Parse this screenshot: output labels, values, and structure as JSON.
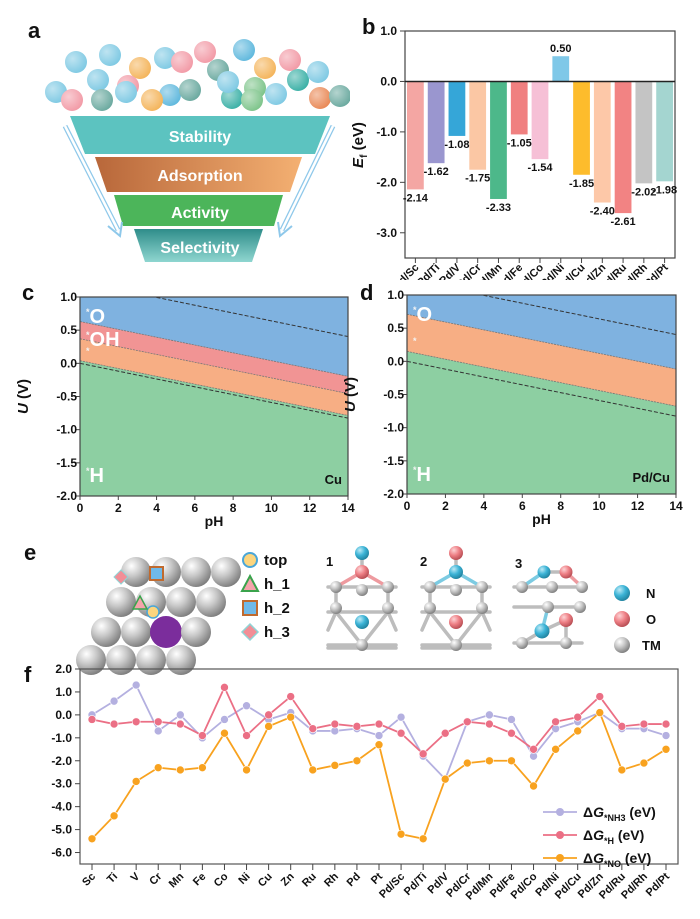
{
  "panels": {
    "a": {
      "letter": "a",
      "funnel_stages": [
        {
          "label": "Stability",
          "color": "#5cc3c0"
        },
        {
          "label": "Adsorption",
          "color": "#e0925a"
        },
        {
          "label": "Activity",
          "color": "#4cb55a"
        },
        {
          "label": "Selectivity",
          "color": "#3a9e9a"
        }
      ],
      "ball_colors": [
        "#7ec9e3",
        "#f29aa6",
        "#6aa99f",
        "#f4b45a",
        "#3ab0a6",
        "#7dc48a",
        "#e98855",
        "#5fb8dd"
      ]
    },
    "b": {
      "letter": "b"
    },
    "c": {
      "letter": "c",
      "material": "Cu",
      "region_labels": [
        "*O",
        "*OH",
        "*",
        "*H"
      ]
    },
    "d": {
      "letter": "d",
      "material": "Pd/Cu",
      "region_labels": [
        "*O",
        "*",
        "*H"
      ]
    },
    "e": {
      "letter": "e",
      "site_legend": [
        {
          "label": "top",
          "shape": "circle"
        },
        {
          "label": "h_1",
          "shape": "triangle"
        },
        {
          "label": "h_2",
          "shape": "square"
        },
        {
          "label": "h_3",
          "shape": "diamond"
        }
      ],
      "config_numbers": [
        "1",
        "2",
        "3"
      ],
      "atom_legend": [
        {
          "label": "N",
          "color": "#3bb3d6"
        },
        {
          "label": "O",
          "color": "#ee7f85"
        },
        {
          "label": "TM",
          "color": "#b9b9b9"
        }
      ]
    },
    "f": {
      "letter": "f"
    }
  },
  "chart_data": [
    {
      "id": "b",
      "type": "bar",
      "title": "",
      "xlabel": "",
      "ylabel": "E_f (eV)",
      "ylim": [
        -3.5,
        1.0
      ],
      "yticks": [
        "1.0",
        "0.0",
        "-1.0",
        "-2.0",
        "-3.0"
      ],
      "ytick_values": [
        1.0,
        0.0,
        -1.0,
        -2.0,
        -3.0
      ],
      "categories": [
        "Pd/Sc",
        "Pd/Ti",
        "Pd/V",
        "Pd/Cr",
        "Pd/Mn",
        "Pd/Fe",
        "Pd/Co",
        "Pd/Ni",
        "Pd/Cu",
        "Pd/Zn",
        "Pd/Ru",
        "Pd/Rh",
        "Pd/Pt"
      ],
      "values": [
        -2.14,
        -1.62,
        -1.08,
        -1.75,
        -2.33,
        -1.05,
        -1.54,
        0.5,
        -1.85,
        -2.4,
        -2.61,
        -2.02,
        -1.98
      ],
      "labels": [
        "-2.14",
        "-1.62",
        "-1.08",
        "-1.75",
        "-2.33",
        "-1.05",
        "-1.54",
        "0.50",
        "-1.85",
        "-2.40",
        "-2.61",
        "-2.02",
        "-1.98"
      ],
      "colors": [
        "#f4a6a3",
        "#9a96cf",
        "#35a6d8",
        "#fbc7a4",
        "#4db88a",
        "#f08080",
        "#f6c0d6",
        "#7fc8e8",
        "#fdbc2c",
        "#fdc8a8",
        "#f28383",
        "#c4c4c4",
        "#a4d5d0"
      ]
    },
    {
      "id": "c",
      "type": "area",
      "title": "Cu",
      "xlabel": "pH",
      "ylabel": "U (V)",
      "xlim": [
        0,
        14
      ],
      "ylim": [
        -2.0,
        1.0
      ],
      "xticks": [
        "0",
        "2",
        "4",
        "6",
        "8",
        "10",
        "12",
        "14"
      ],
      "yticks": [
        "1.0",
        "0.5",
        "0.0",
        "-0.5",
        "-1.0",
        "-1.5",
        "-2.0"
      ],
      "boundaries_at_pH0": [
        0.63,
        0.37,
        0.04
      ],
      "slope_per_pH": -0.059,
      "dashed_lines_at_pH0": [
        1.23,
        0.0
      ],
      "regions": [
        {
          "label": "*O",
          "color": "#7fb2e0"
        },
        {
          "label": "*OH",
          "color": "#f19494"
        },
        {
          "label": "*",
          "color": "#f7ae84"
        },
        {
          "label": "*H",
          "color": "#8dcfa2"
        }
      ]
    },
    {
      "id": "d",
      "type": "area",
      "title": "Pd/Cu",
      "xlabel": "pH",
      "ylabel": "U (V)",
      "xlim": [
        0,
        14
      ],
      "ylim": [
        -2.0,
        1.0
      ],
      "xticks": [
        "0",
        "2",
        "4",
        "6",
        "8",
        "10",
        "12",
        "14"
      ],
      "yticks": [
        "1.0",
        "0.5",
        "0.0",
        "-0.5",
        "-1.0",
        "-1.5",
        "-2.0"
      ],
      "boundaries_at_pH0": [
        0.71,
        0.15
      ],
      "slope_per_pH": -0.059,
      "dashed_lines_at_pH0": [
        1.23,
        0.0
      ],
      "regions": [
        {
          "label": "*O",
          "color": "#7fb2e0"
        },
        {
          "label": "*",
          "color": "#f7ae84"
        },
        {
          "label": "*H",
          "color": "#8dcfa2"
        }
      ]
    },
    {
      "id": "f",
      "type": "line",
      "title": "",
      "xlabel": "",
      "ylabel": "",
      "ylim": [
        -6.5,
        2.0
      ],
      "yticks": [
        "2.0",
        "1.0",
        "0.0",
        "-1.0",
        "-2.0",
        "-3.0",
        "-4.0",
        "-5.0",
        "-6.0"
      ],
      "ytick_values": [
        2,
        1,
        0,
        -1,
        -2,
        -3,
        -4,
        -5,
        -6
      ],
      "legend_position": "bottom-right",
      "categories": [
        "Sc",
        "Ti",
        "V",
        "Cr",
        "Mn",
        "Fe",
        "Co",
        "Ni",
        "Cu",
        "Zn",
        "Ru",
        "Rh",
        "Pd",
        "Pt",
        "Pd/Sc",
        "Pd/Ti",
        "Pd/V",
        "Pd/Cr",
        "Pd/Mn",
        "Pd/Fe",
        "Pd/Co",
        "Pd/Ni",
        "Pd/Cu",
        "Pd/Zn",
        "Pd/Ru",
        "Pd/Rh",
        "Pd/Pt"
      ],
      "series": [
        {
          "name": "ΔG*NH3 (eV)",
          "legend_main": "ΔG",
          "legend_sub": "*NH3",
          "legend_unit": "(eV)",
          "color": "#b4b0e0",
          "values": [
            0.0,
            0.6,
            1.3,
            -0.7,
            0.0,
            -1.0,
            -0.2,
            0.4,
            -0.2,
            0.1,
            -0.7,
            -0.7,
            -0.6,
            -0.9,
            -0.1,
            -1.8,
            -2.8,
            -0.3,
            0.0,
            -0.2,
            -1.8,
            -0.6,
            -0.3,
            0.1,
            -0.6,
            -0.6,
            -0.9
          ]
        },
        {
          "name": "ΔG*H (eV)",
          "legend_main": "ΔG",
          "legend_sub": "*H",
          "legend_unit": "(eV)",
          "color": "#eb6f85",
          "values": [
            -0.2,
            -0.4,
            -0.3,
            -0.3,
            -0.4,
            -0.9,
            1.2,
            -0.9,
            0.0,
            0.8,
            -0.6,
            -0.4,
            -0.5,
            -0.4,
            -0.8,
            -1.7,
            -0.8,
            -0.3,
            -0.4,
            -0.8,
            -1.5,
            -0.3,
            -0.1,
            0.8,
            -0.5,
            -0.4,
            -0.4
          ]
        },
        {
          "name": "ΔG*NO (eV)",
          "legend_main": "ΔG",
          "legend_sub": "*NO",
          "legend_unit": "(eV)",
          "color": "#f8a21f",
          "values": [
            -5.4,
            -4.4,
            -2.9,
            -2.3,
            -2.4,
            -2.3,
            -0.8,
            -2.4,
            -0.5,
            -0.1,
            -2.4,
            -2.2,
            -2.0,
            -1.3,
            -5.2,
            -5.4,
            -2.8,
            -2.1,
            -2.0,
            -2.0,
            -3.1,
            -1.5,
            -0.7,
            0.1,
            -2.4,
            -2.1,
            -1.5
          ]
        }
      ]
    }
  ]
}
